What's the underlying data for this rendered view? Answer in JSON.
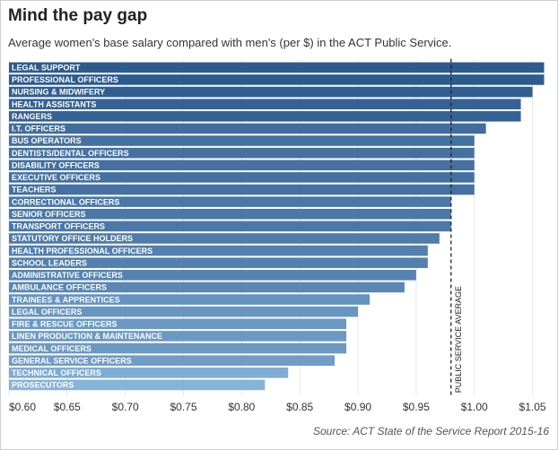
{
  "title": "Mind the pay gap",
  "subtitle": "Average women's base salary compared with men's (per $) in the ACT Public Service.",
  "source": "Source: ACT State of the Service Report 2015-16",
  "colors": {
    "bar_dark": "#2e5b8e",
    "bar_light": "#86b3da",
    "avg_line": "#222222"
  },
  "chart_data": {
    "type": "bar",
    "orientation": "horizontal",
    "title": "Mind the pay gap",
    "subtitle": "Average women's base salary compared with men's (per $) in the ACT Public Service.",
    "xlabel": "",
    "ylabel": "",
    "xlim": [
      0.6,
      1.065
    ],
    "x_ticks": [
      0.6,
      0.65,
      0.7,
      0.75,
      0.8,
      0.85,
      0.9,
      0.95,
      1.0,
      1.05
    ],
    "x_tick_labels": [
      "$0.60",
      "$0.65",
      "$0.70",
      "$0.75",
      "$0.80",
      "$0.85",
      "$0.90",
      "$0.95",
      "$1.00",
      "$1.05"
    ],
    "categories": [
      "LEGAL SUPPORT",
      "PROFESSIONAL OFFICERS",
      "NURSING & MIDWIFERY",
      "HEALTH ASSISTANTS",
      "RANGERS",
      "I.T. OFFICERS",
      "BUS OPERATORS",
      "DENTISTS/DENTAL OFFICERS",
      "DISABILITY OFFICERS",
      "EXECUTIVE OFFICERS",
      "TEACHERS",
      "CORRECTIONAL OFFICERS",
      "SENIOR OFFICERS",
      "TRANSPORT OFFICERS",
      "STATUTORY OFFICE HOLDERS",
      "HEALTH PROFESSIONAL OFFICERS",
      "SCHOOL LEADERS",
      "ADMINISTRATIVE OFFICERS",
      "AMBULANCE OFFICERS",
      "TRAINEES & APPRENTICES",
      "LEGAL OFFICERS",
      "FIRE & RESCUE OFFICERS",
      "LINEN PRODUCTION & MAINTENANCE",
      "MEDICAL OFFICERS",
      "GENERAL SERVICE OFFICERS",
      "TECHNICAL OFFICERS",
      "PROSECUTORS"
    ],
    "values": [
      1.06,
      1.06,
      1.05,
      1.04,
      1.04,
      1.01,
      1.0,
      1.0,
      1.0,
      1.0,
      1.0,
      0.98,
      0.98,
      0.98,
      0.97,
      0.96,
      0.96,
      0.95,
      0.94,
      0.91,
      0.9,
      0.89,
      0.89,
      0.89,
      0.88,
      0.84,
      0.82
    ],
    "reference_line": {
      "value": 0.98,
      "label": "PUBLIC SERVICE AVERAGE",
      "style": "dashed"
    },
    "grid": true
  }
}
